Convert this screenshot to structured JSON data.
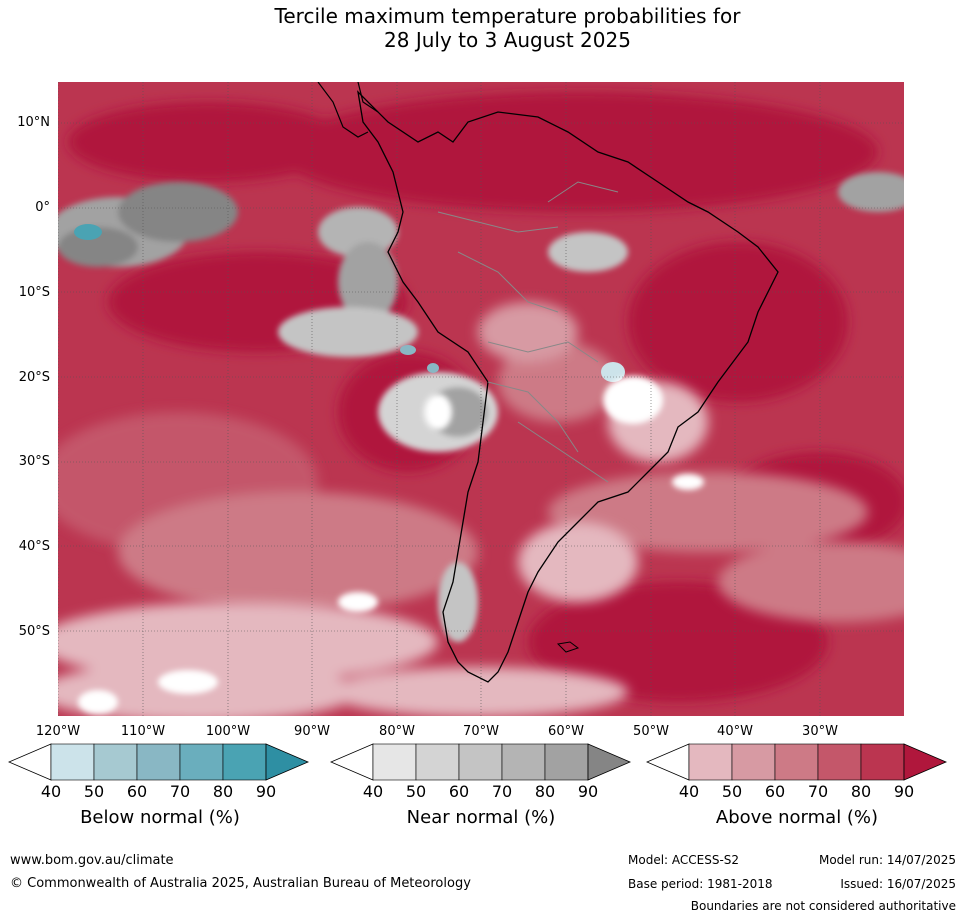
{
  "title_line1": "Tercile maximum temperature probabilities for",
  "title_line2": "28 July to 3 August 2025",
  "lat_labels": [
    "10°N",
    "0°",
    "10°S",
    "20°S",
    "30°S",
    "40°S",
    "50°S"
  ],
  "lon_labels": [
    "120°W",
    "110°W",
    "100°W",
    "90°W",
    "80°W",
    "70°W",
    "60°W",
    "50°W",
    "40°W",
    "30°W"
  ],
  "legends": [
    {
      "title": "Below normal (%)",
      "ticks": [
        "40",
        "50",
        "60",
        "70",
        "80",
        "90"
      ],
      "colors": [
        "#ffffff",
        "#cce3ea",
        "#a6c9d1",
        "#89b7c4",
        "#6aaebd",
        "#4aa3b3",
        "#2e8fa3"
      ]
    },
    {
      "title": "Near normal (%)",
      "ticks": [
        "40",
        "50",
        "60",
        "70",
        "80",
        "90"
      ],
      "colors": [
        "#ffffff",
        "#e6e6e6",
        "#d4d4d4",
        "#c4c4c4",
        "#b4b4b4",
        "#a2a2a2",
        "#858585"
      ]
    },
    {
      "title": "Above normal (%)",
      "ticks": [
        "40",
        "50",
        "60",
        "70",
        "80",
        "90"
      ],
      "colors": [
        "#ffffff",
        "#e4b8bf",
        "#d79aa3",
        "#cd7a86",
        "#c4576a",
        "#bb3550",
        "#b0173c"
      ]
    }
  ],
  "footer": {
    "website": "www.bom.gov.au/climate",
    "copyright": "© Commonwealth of Australia 2025, Australian Bureau of Meteorology",
    "model": "Model: ACCESS-S2",
    "base_period": "Base period: 1981-2018",
    "model_run": "Model run: 14/07/2025",
    "issued": "Issued: 16/07/2025",
    "disclaimer": "Boundaries are not considered authoritative"
  }
}
